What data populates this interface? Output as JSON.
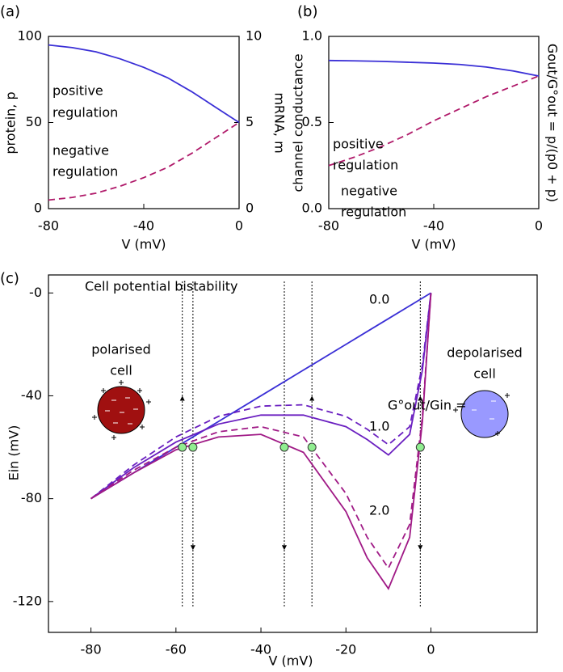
{
  "chart_data": [
    {
      "type": "line",
      "panel_label": "(a)",
      "xlabel": "V (mV)",
      "ylabel": "protein, p",
      "y2label": "mRNA, m",
      "x": [
        -80,
        -70,
        -60,
        -50,
        -40,
        -30,
        -20,
        -10,
        0
      ],
      "xlim": [
        -80,
        0
      ],
      "xticks": [
        -80,
        -40,
        0
      ],
      "ylim": [
        0,
        100
      ],
      "yticks": [
        0,
        50,
        100
      ],
      "y2lim": [
        0,
        10
      ],
      "y2ticks": [
        0,
        5,
        10
      ],
      "series": [
        {
          "color": "#3a2fd6",
          "linestyle": "solid",
          "values": [
            95,
            93.5,
            91,
            87,
            82,
            76,
            68,
            59,
            50
          ]
        },
        {
          "color": "#b01a6a",
          "linestyle": "dashed",
          "values": [
            5,
            6.5,
            9,
            13,
            18,
            24,
            32,
            41,
            50
          ]
        }
      ],
      "annotations": [
        "positive",
        "regulation",
        "negative",
        "regulation"
      ]
    },
    {
      "type": "line",
      "panel_label": "(b)",
      "xlabel": "V (mV)",
      "ylabel": "channel conductance",
      "y2label": "Gout/G°out = p/(p0 + p)",
      "x": [
        -80,
        -70,
        -60,
        -50,
        -40,
        -30,
        -20,
        -10,
        0
      ],
      "xlim": [
        -80,
        0
      ],
      "xticks": [
        -80,
        -40,
        0
      ],
      "ylim": [
        0,
        1
      ],
      "yticks": [
        {
          "value": 0,
          "label": "0.0"
        },
        {
          "value": 0.5,
          "label": "0.5"
        },
        {
          "value": 1,
          "label": "1.0"
        }
      ],
      "series": [
        {
          "color": "#3a2fd6",
          "linestyle": "solid",
          "values": [
            0.86,
            0.858,
            0.855,
            0.85,
            0.845,
            0.837,
            0.822,
            0.8,
            0.77
          ]
        },
        {
          "color": "#b01a6a",
          "linestyle": "dashed",
          "values": [
            0.25,
            0.3,
            0.36,
            0.43,
            0.51,
            0.58,
            0.65,
            0.71,
            0.77
          ]
        }
      ],
      "annotations": [
        "positive",
        "regulation",
        "negative",
        "regulation"
      ]
    },
    {
      "type": "line",
      "panel_label": "(c)",
      "title": "Cell potential bistability",
      "xlabel": "V (mV)",
      "ylabel": "Ein (mV)",
      "x": [
        -80,
        -70,
        -60,
        -50,
        -40,
        -30,
        -20,
        -15,
        -10,
        -5,
        -2,
        0
      ],
      "xlim": [
        -90,
        25
      ],
      "xticks": [
        -80,
        -60,
        -40,
        -20,
        0
      ],
      "ylim": [
        -132,
        7
      ],
      "yticks": [
        {
          "value": 0,
          "label": "-0"
        },
        -40,
        -80,
        -120
      ],
      "series": [
        {
          "color": "#3a2fd6",
          "linestyle": "solid",
          "values": [
            -80,
            -70,
            -60,
            -50,
            -40,
            -30,
            -20,
            -15,
            -10,
            -5,
            -2,
            0
          ]
        },
        {
          "color": "#6a1fc0",
          "linestyle": "solid",
          "values": [
            -80,
            -68,
            -58,
            -51,
            -47.5,
            -47.5,
            -52,
            -57,
            -63,
            -55,
            -30,
            0
          ]
        },
        {
          "color": "#6a1fc0",
          "linestyle": "dashed",
          "values": [
            -80,
            -67,
            -56,
            -48,
            -44,
            -43.5,
            -48,
            -53,
            -59,
            -52,
            -28,
            0
          ]
        },
        {
          "color": "#a01a86",
          "linestyle": "solid",
          "values": [
            -80,
            -70,
            -61,
            -56,
            -55,
            -62,
            -85,
            -103,
            -115,
            -95,
            -50,
            0
          ]
        },
        {
          "color": "#a01a86",
          "linestyle": "dashed",
          "values": [
            -80,
            -69,
            -60,
            -54,
            -52,
            -56,
            -78,
            -95,
            -107,
            -90,
            -48,
            0
          ]
        }
      ],
      "points": {
        "color": "#90ee90",
        "x": [
          -58.5,
          -56,
          -34.5,
          -28,
          -2.5
        ],
        "y": [
          -60,
          -60,
          -60,
          -60,
          -60
        ]
      },
      "annotations": [
        "0.0",
        "G°out/Gin =",
        "1.0",
        "2.0",
        "polarised",
        "cell",
        "depolarised",
        "cell"
      ]
    }
  ]
}
